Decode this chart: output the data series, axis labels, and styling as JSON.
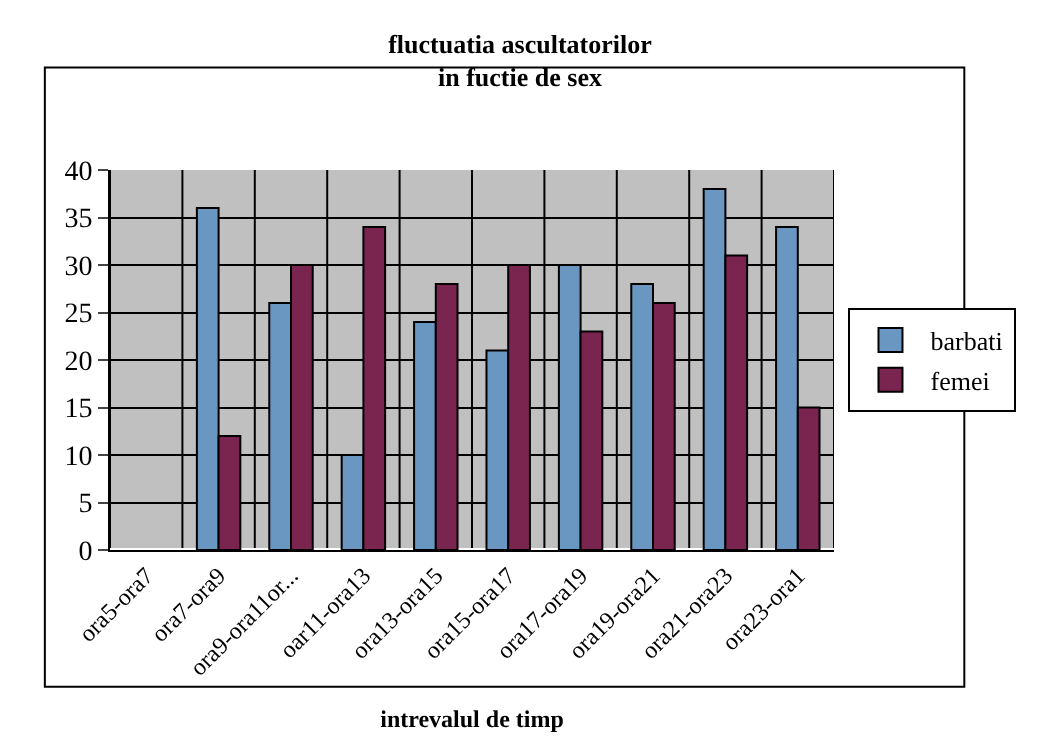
{
  "chart_data": {
    "type": "bar",
    "title": "fluctuatia ascultatorilor\nin fuctie de sex",
    "xlabel": "intrevalul de timp",
    "categories": [
      "ora5-ora7",
      "ora7-ora9",
      "ora9-ora11or...",
      "oar11-ora13",
      "ora13-ora15",
      "ora15-ora17",
      "ora17-ora19",
      "ora19-ora21",
      "ora21-ora23",
      "ora23-ora1"
    ],
    "series": [
      {
        "name": "barbati",
        "color": "#6a96c2",
        "values": [
          null,
          36,
          26,
          10,
          24,
          21,
          30,
          28,
          38,
          34
        ]
      },
      {
        "name": "femei",
        "color": "#7a2450",
        "values": [
          null,
          12,
          30,
          34,
          28,
          30,
          23,
          26,
          31,
          15
        ]
      }
    ],
    "ylim": [
      0,
      40
    ],
    "yticks": [
      0,
      5,
      10,
      15,
      20,
      25,
      30,
      35,
      40
    ],
    "grid": true,
    "legend": "right"
  }
}
